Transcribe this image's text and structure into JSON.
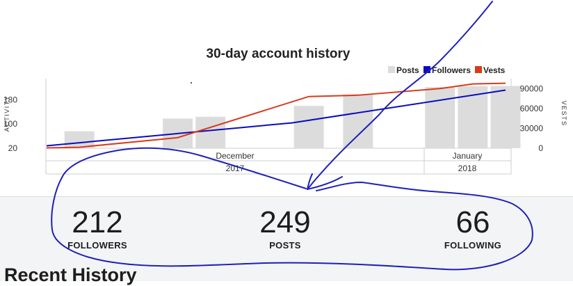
{
  "chart_data": {
    "type": "bar",
    "title": "30-day account history",
    "legend": {
      "placement": "top-right",
      "items": [
        {
          "name": "Posts",
          "color": "#dcdcdc"
        },
        {
          "name": "Followers",
          "color": "#0b0bbd"
        },
        {
          "name": "Vests",
          "color": "#d83a1a"
        }
      ]
    },
    "left_axis": {
      "label": "ACTIVITY",
      "ticks": [
        "20",
        "100",
        "180"
      ],
      "range": [
        20,
        250
      ]
    },
    "right_axis": {
      "label": "VESTS",
      "ticks": [
        "0",
        "30000",
        "60000",
        "90000"
      ],
      "range": [
        0,
        105000
      ]
    },
    "x_axis": {
      "months": [
        {
          "name": "December",
          "year": "2017"
        },
        {
          "name": "January",
          "year": "2018"
        }
      ]
    },
    "series": [
      {
        "name": "Posts",
        "type": "bar",
        "axis": "left",
        "color": "#dcdcdc",
        "points": [
          [
            2,
            76
          ],
          [
            8,
            118
          ],
          [
            10,
            124
          ],
          [
            16,
            160
          ],
          [
            19,
            198
          ],
          [
            24,
            222
          ],
          [
            26,
            225
          ],
          [
            28,
            226
          ]
        ]
      },
      {
        "name": "Followers",
        "type": "line",
        "axis": "left",
        "color": "#0b0bbd",
        "points": [
          [
            0,
            28
          ],
          [
            15,
            104
          ],
          [
            28,
            212
          ]
        ]
      },
      {
        "name": "Vests",
        "type": "line",
        "axis": "right",
        "color": "#d83a1a",
        "points": [
          [
            0,
            500
          ],
          [
            2,
            1500
          ],
          [
            8,
            16000
          ],
          [
            16,
            78000
          ],
          [
            19,
            80000
          ],
          [
            24,
            90000
          ],
          [
            26,
            97000
          ],
          [
            28,
            98000
          ]
        ]
      }
    ]
  },
  "stats": {
    "followers": {
      "value": "212",
      "label": "FOLLOWERS"
    },
    "posts": {
      "value": "249",
      "label": "POSTS"
    },
    "following": {
      "value": "66",
      "label": "FOLLOWING"
    }
  },
  "recent": {
    "heading": "Recent History"
  },
  "colors": {
    "annotation": "#1f1fb8",
    "panel": "#f3f4f5"
  }
}
